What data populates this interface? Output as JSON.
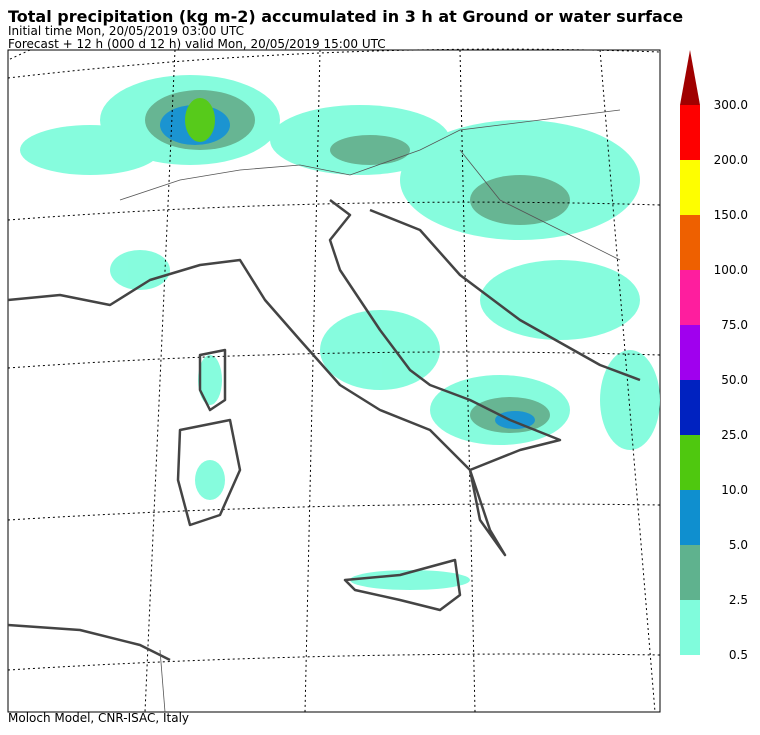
{
  "header": {
    "title": "Total precipitation (kg m-2) accumulated in   3 h at Ground or water surface",
    "initial": "Initial time  Mon, 20/05/2019  03:00 UTC",
    "forecast": "Forecast  +  12 h  (000 d 12 h)  valid Mon, 20/05/2019 15:00 UTC"
  },
  "footer": "Moloch Model, CNR-ISAC, Italy",
  "colorbar": {
    "ticks": [
      {
        "value": 0.5,
        "label": "0.5"
      },
      {
        "value": 2.5,
        "label": "2.5"
      },
      {
        "value": 5,
        "label": "5.0"
      },
      {
        "value": 10,
        "label": "10.0"
      },
      {
        "value": 25,
        "label": "25.0"
      },
      {
        "value": 50,
        "label": "50.0"
      },
      {
        "value": 75,
        "label": "75.0"
      },
      {
        "value": 100,
        "label": "100.0"
      },
      {
        "value": 150,
        "label": "150.0"
      },
      {
        "value": 200,
        "label": "200.0"
      },
      {
        "value": 300,
        "label": "300.0"
      }
    ],
    "colors": [
      "#80fcdc",
      "#5fb28e",
      "#0f8fcf",
      "#4fc80f",
      "#0022c0",
      "#a000ee",
      "#fe1e9e",
      "#ee6000",
      "#fefe00",
      "#fe0000",
      "#a00000"
    ]
  }
}
